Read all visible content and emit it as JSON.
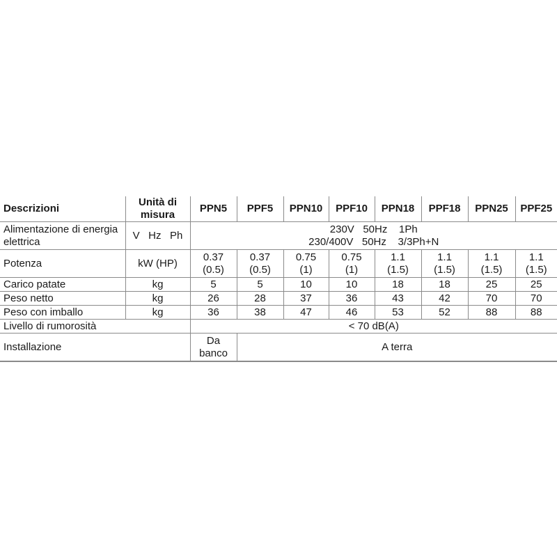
{
  "header": {
    "description": "Descrizioni",
    "unit": "Unità di misura",
    "models": [
      "PPN5",
      "PPF5",
      "PPN10",
      "PPF10",
      "PPN18",
      "PPF18",
      "PPN25",
      "PPF25"
    ]
  },
  "rows": {
    "power_supply": {
      "label": "Alimentazione di energia elettrica",
      "unit": "V   Hz   Ph",
      "line1": "230V   50Hz    1Ph",
      "line2": "230/400V   50Hz    3/3Ph+N"
    },
    "power": {
      "label": "Potenza",
      "unit": "kW (HP)",
      "kw": [
        "0.37",
        "0.37",
        "0.75",
        "0.75",
        "1.1",
        "1.1",
        "1.1",
        "1.1"
      ],
      "hp": [
        "(0.5)",
        "(0.5)",
        "(1)",
        "(1)",
        "(1.5)",
        "(1.5)",
        "(1.5)",
        "(1.5)"
      ]
    },
    "load": {
      "label": "Carico patate",
      "unit": "kg",
      "values": [
        "5",
        "5",
        "10",
        "10",
        "18",
        "18",
        "25",
        "25"
      ]
    },
    "net_weight": {
      "label": "Peso netto",
      "unit": "kg",
      "values": [
        "26",
        "28",
        "37",
        "36",
        "43",
        "42",
        "70",
        "70"
      ]
    },
    "gross_weight": {
      "label": "Peso con imballo",
      "unit": "kg",
      "values": [
        "36",
        "38",
        "47",
        "46",
        "53",
        "52",
        "88",
        "88"
      ]
    },
    "noise": {
      "label": "Livello di rumorosità",
      "value": "< 70 dB(A)"
    },
    "installation": {
      "label": "Installazione",
      "first_line1": "Da",
      "first_line2": "banco",
      "rest": "A terra"
    }
  }
}
